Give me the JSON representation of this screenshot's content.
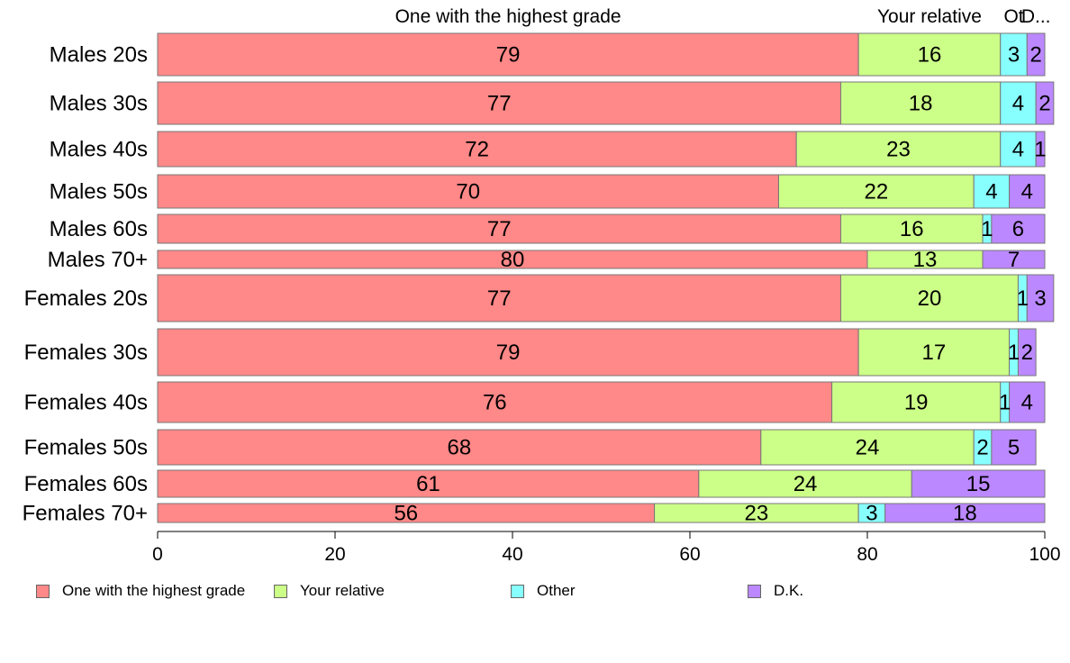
{
  "chart_data": {
    "type": "bar",
    "orientation": "horizontal",
    "stacked": true,
    "categories": [
      "Males 20s",
      "Males 30s",
      "Males 40s",
      "Males 50s",
      "Males 60s",
      "Males 70+",
      "Females 20s",
      "Females 30s",
      "Females 40s",
      "Females 50s",
      "Females 60s",
      "Females 70+"
    ],
    "series": [
      {
        "name": "One with the highest grade",
        "color": "#ff8888",
        "values": [
          79,
          77,
          72,
          70,
          77,
          80,
          77,
          79,
          76,
          68,
          61,
          56
        ]
      },
      {
        "name": "Your relative",
        "color": "#ccff88",
        "values": [
          16,
          18,
          23,
          22,
          16,
          13,
          20,
          17,
          19,
          24,
          24,
          23
        ]
      },
      {
        "name": "Other",
        "color": "#88ffff",
        "values": [
          3,
          4,
          4,
          4,
          1,
          0,
          1,
          1,
          1,
          2,
          0,
          3
        ]
      },
      {
        "name": "D.K.",
        "color": "#bb88ff",
        "values": [
          2,
          2,
          1,
          4,
          6,
          7,
          3,
          2,
          4,
          5,
          15,
          18
        ]
      }
    ],
    "xlim": [
      0,
      100
    ],
    "xticks": [
      0,
      20,
      40,
      60,
      80,
      100
    ],
    "top_labels": [
      "One with the highest grade",
      "Your relative",
      "Ot",
      "D..."
    ],
    "grid": false,
    "legend_position": "bottom"
  }
}
